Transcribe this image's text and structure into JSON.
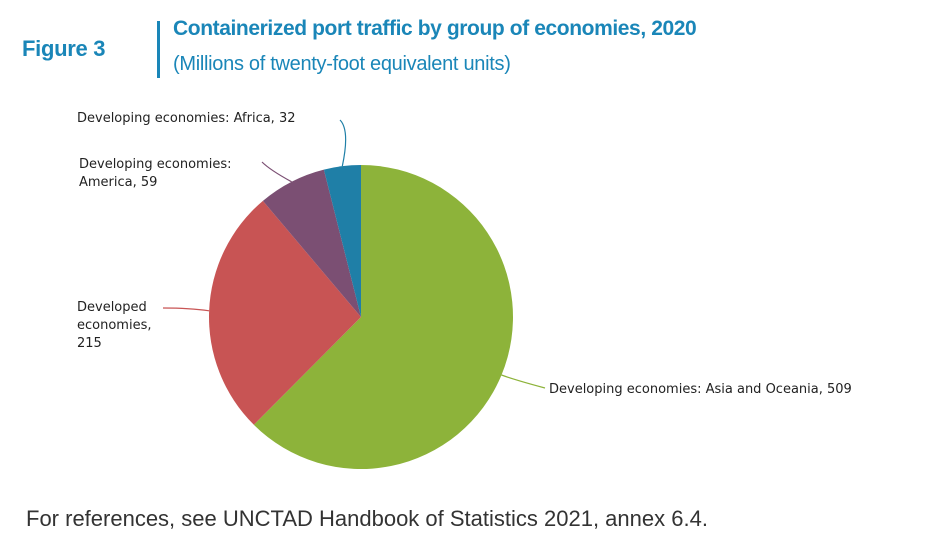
{
  "figure": {
    "label": "Figure 3",
    "title": "Containerized port traffic by group of economies, 2020",
    "subtitle": "(Millions of twenty-foot equivalent units)"
  },
  "chart_data": {
    "type": "pie",
    "title": "Containerized port traffic by group of economies, 2020",
    "subtitle": "(Millions of twenty-foot equivalent units)",
    "slices": [
      {
        "label": "Developing economies: Asia and Oceania",
        "value": 509,
        "color": "#8db33a"
      },
      {
        "label": "Developed economies",
        "value": 215,
        "color": "#c85454"
      },
      {
        "label": "Developing economies: America",
        "value": 59,
        "color": "#7b4f73"
      },
      {
        "label": "Developing economies: Africa",
        "value": 32,
        "color": "#1f7fa7"
      }
    ],
    "label_lines": [
      [
        "Developing economies: Asia and Oceania, 509"
      ],
      [
        "Developed",
        "economies,",
        "215"
      ],
      [
        "Developing economies:",
        "America, 59"
      ],
      [
        "Developing economies: Africa, 32"
      ]
    ]
  },
  "footnote": "For references, see UNCTAD Handbook of Statistics 2021, annex 6.4."
}
